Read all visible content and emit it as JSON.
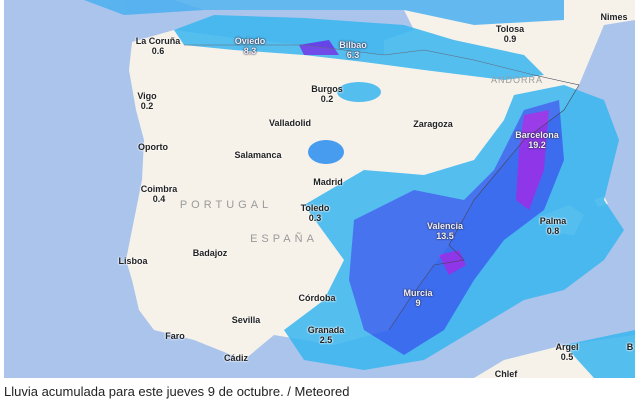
{
  "map": {
    "colors": {
      "sea": "#aac4ec",
      "land": "#f6f2ea",
      "rain_light": "#38b6f0",
      "rain_mid": "#2a5ef0",
      "rain_heavy": "#8a1ee8"
    },
    "countries": [
      "PORTUGAL",
      "ESPAÑA",
      "ANDORRA"
    ],
    "cities": [
      {
        "name": "La Coruña",
        "value": "0.6"
      },
      {
        "name": "Oviedo",
        "value": "8.3"
      },
      {
        "name": "Bilbao",
        "value": "6.3"
      },
      {
        "name": "Tolosa",
        "value": "0.9"
      },
      {
        "name": "Nimes",
        "value": ""
      },
      {
        "name": "Vigo",
        "value": "0.2"
      },
      {
        "name": "Burgos",
        "value": "0.2"
      },
      {
        "name": "Valladolid",
        "value": ""
      },
      {
        "name": "Zaragoza",
        "value": ""
      },
      {
        "name": "Barcelona",
        "value": "19.2"
      },
      {
        "name": "Oporto",
        "value": ""
      },
      {
        "name": "Salamanca",
        "value": ""
      },
      {
        "name": "Madrid",
        "value": ""
      },
      {
        "name": "Coimbra",
        "value": "0.4"
      },
      {
        "name": "Toledo",
        "value": "0.3"
      },
      {
        "name": "Valencia",
        "value": "13.5"
      },
      {
        "name": "Palma",
        "value": "0.8"
      },
      {
        "name": "Badajoz",
        "value": ""
      },
      {
        "name": "Lisboa",
        "value": ""
      },
      {
        "name": "Córdoba",
        "value": ""
      },
      {
        "name": "Murcia",
        "value": "9"
      },
      {
        "name": "Sevilla",
        "value": ""
      },
      {
        "name": "Granada",
        "value": "2.5"
      },
      {
        "name": "Faro",
        "value": ""
      },
      {
        "name": "Cádiz",
        "value": ""
      },
      {
        "name": "Argel",
        "value": "0.5"
      },
      {
        "name": "Chlef",
        "value": ""
      },
      {
        "name": "B",
        "value": ""
      }
    ]
  },
  "caption": "Lluvia acumulada para este jueves 9 de octubre. / Meteored"
}
